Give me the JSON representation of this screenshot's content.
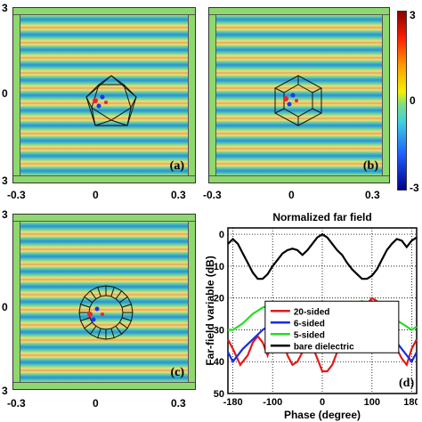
{
  "panels": [
    {
      "label": "(a)",
      "structure": "5-sided"
    },
    {
      "label": "(b)",
      "structure": "6-sided"
    },
    {
      "label": "(c)",
      "structure": "20-sided"
    }
  ],
  "field_axis": {
    "x_ticks": [
      "-0.3",
      "0",
      "0.3"
    ],
    "y_ticks": [
      "3",
      "0",
      "3"
    ]
  },
  "colorbar": {
    "max": "3",
    "mid": "0",
    "min": "-3"
  },
  "chart_data": {
    "type": "line",
    "title": "Normalized far field",
    "xlabel": "Phase (degree)",
    "ylabel": "Far-field variable (dB)",
    "xlim": [
      -190,
      190
    ],
    "ylim": [
      -50,
      2
    ],
    "x_ticks": [
      "-180",
      "-100",
      "0",
      "100",
      "180"
    ],
    "x_tick_values": [
      -180,
      -100,
      0,
      100,
      180
    ],
    "y_ticks": [
      "0",
      "10",
      "20",
      "30",
      "40",
      "50"
    ],
    "y_tick_values": [
      0,
      -10,
      -20,
      -30,
      -40,
      -50
    ],
    "panel_label": "(d)",
    "grid": true,
    "legend_position": "right",
    "series": [
      {
        "name": "20-sided",
        "color": "#e21a1a",
        "x": [
          -190,
          -180,
          -165,
          -150,
          -140,
          -130,
          -120,
          -110,
          -100,
          -90,
          -80,
          -70,
          -60,
          -50,
          -40,
          -30,
          -20,
          -10,
          0,
          10,
          20,
          30,
          40,
          50,
          60,
          70,
          80,
          90,
          100,
          110,
          120,
          130,
          140,
          150,
          160,
          170,
          180,
          190
        ],
        "y": [
          -33,
          -36,
          -41,
          -38,
          -34,
          -32,
          -34,
          -38,
          -33,
          -31,
          -33,
          -38,
          -41,
          -40,
          -37,
          -34,
          -35,
          -39,
          -43,
          -43,
          -41,
          -37,
          -34,
          -32,
          -30,
          -28,
          -24,
          -22,
          -20,
          -21,
          -24,
          -28,
          -32,
          -36,
          -39,
          -41,
          -36,
          -33
        ]
      },
      {
        "name": "6-sided",
        "color": "#1a2ee0",
        "x": [
          -190,
          -180,
          -160,
          -140,
          -120,
          -100,
          -80,
          -60,
          -40,
          -20,
          0,
          20,
          40,
          60,
          80,
          100,
          120,
          140,
          160,
          180,
          190
        ],
        "y": [
          -37,
          -40,
          -36,
          -33,
          -30,
          -28,
          -27,
          -28,
          -31,
          -34,
          -35,
          -33,
          -30,
          -27,
          -25,
          -26,
          -29,
          -32,
          -36,
          -40,
          -37
        ]
      },
      {
        "name": "5-sided",
        "color": "#22dd22",
        "x": [
          -190,
          -180,
          -160,
          -140,
          -120,
          -100,
          -80,
          -60,
          -40,
          -20,
          0,
          20,
          40,
          60,
          80,
          100,
          120,
          140,
          160,
          180,
          190
        ],
        "y": [
          -30,
          -30,
          -28,
          -25,
          -23,
          -22,
          -22,
          -23,
          -24,
          -26,
          -27,
          -26,
          -24,
          -22,
          -21,
          -22,
          -24,
          -26,
          -28,
          -30,
          -29
        ]
      },
      {
        "name": "bare dielectric",
        "color": "#000000",
        "x": [
          -190,
          -180,
          -170,
          -160,
          -150,
          -140,
          -130,
          -120,
          -110,
          -100,
          -90,
          -80,
          -70,
          -60,
          -50,
          -40,
          -30,
          -20,
          -10,
          0,
          10,
          20,
          30,
          40,
          50,
          60,
          70,
          80,
          90,
          100,
          110,
          120,
          130,
          140,
          150,
          160,
          170,
          180,
          190
        ],
        "y": [
          -3,
          -1.5,
          -3,
          -6,
          -9,
          -12,
          -14,
          -14,
          -12.5,
          -10,
          -8,
          -6,
          -5,
          -4.5,
          -5,
          -6.5,
          -5,
          -3,
          -1,
          0,
          -1,
          -3,
          -5,
          -6.5,
          -9,
          -11,
          -12.5,
          -14,
          -14,
          -13,
          -11,
          -8,
          -5,
          -3,
          -1.5,
          -2,
          -4,
          -2,
          -1
        ]
      }
    ]
  }
}
